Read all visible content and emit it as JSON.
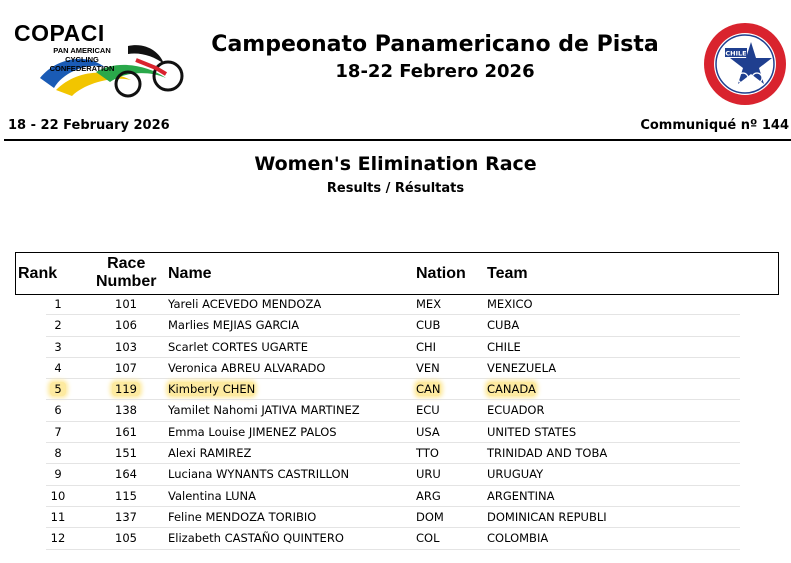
{
  "header": {
    "org_name": "COPACI",
    "org_sub_lines": [
      "PAN AMERICAN",
      "CYCLING",
      "CONFEDERATION"
    ],
    "title_line1": "Campeonato Panamericano de Pista",
    "title_line2": "18-22 Febrero 2026",
    "seal_text": "CHILE",
    "dates": "18 - 22 February 2026",
    "communique": "Communiqué nº 144"
  },
  "race": {
    "title": "Women's Elimination Race",
    "subtitle": "Results / Résultats"
  },
  "columns": {
    "rank": "Rank",
    "race_number_line1": "Race",
    "race_number_line2": "Number",
    "name": "Name",
    "nation": "Nation",
    "team": "Team"
  },
  "rows": [
    {
      "rank": "1",
      "number": "101",
      "name": "Yareli ACEVEDO MENDOZA",
      "nation": "MEX",
      "team": "MEXICO"
    },
    {
      "rank": "2",
      "number": "106",
      "name": "Marlies MEJIAS GARCIA",
      "nation": "CUB",
      "team": "CUBA"
    },
    {
      "rank": "3",
      "number": "103",
      "name": "Scarlet CORTES UGARTE",
      "nation": "CHI",
      "team": "CHILE"
    },
    {
      "rank": "4",
      "number": "107",
      "name": "Veronica ABREU ALVARADO",
      "nation": "VEN",
      "team": "VENEZUELA"
    },
    {
      "rank": "5",
      "number": "119",
      "name": "Kimberly CHEN",
      "nation": "CAN",
      "team": "CANADA",
      "highlighted": true
    },
    {
      "rank": "6",
      "number": "138",
      "name": "Yamilet Nahomi JATIVA MARTINEZ",
      "nation": "ECU",
      "team": "ECUADOR"
    },
    {
      "rank": "7",
      "number": "161",
      "name": "Emma Louise JIMENEZ PALOS",
      "nation": "USA",
      "team": "UNITED STATES"
    },
    {
      "rank": "8",
      "number": "151",
      "name": "Alexi RAMIREZ",
      "nation": "TTO",
      "team": "TRINIDAD AND TOBA"
    },
    {
      "rank": "9",
      "number": "164",
      "name": "Luciana WYNANTS CASTRILLON",
      "nation": "URU",
      "team": "URUGUAY"
    },
    {
      "rank": "10",
      "number": "115",
      "name": "Valentina LUNA",
      "nation": "ARG",
      "team": "ARGENTINA"
    },
    {
      "rank": "11",
      "number": "137",
      "name": "Feline MENDOZA TORIBIO",
      "nation": "DOM",
      "team": "DOMINICAN REPUBLI"
    },
    {
      "rank": "12",
      "number": "105",
      "name": "Elizabeth CASTAÑO QUINTERO",
      "nation": "COL",
      "team": "COLOMBIA"
    }
  ],
  "colors": {
    "highlight": "#fdeaa0",
    "seal_red": "#d9232e",
    "seal_blue": "#1f3f8f"
  }
}
